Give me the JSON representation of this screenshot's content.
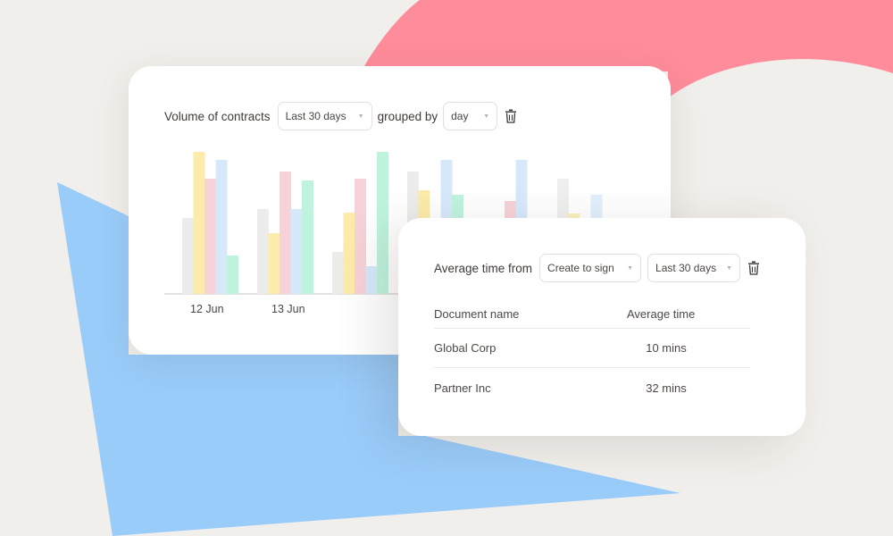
{
  "volume_card": {
    "label_prefix": "Volume of contracts",
    "range_select": "Last 30 days",
    "label_group": "grouped by",
    "group_select": "day",
    "delete_icon": "trash-icon"
  },
  "average_card": {
    "label": "Average time from",
    "from_select": "Create to sign",
    "range_select": "Last 30 days",
    "delete_icon": "trash-icon",
    "columns": [
      "Document name",
      "Average time"
    ],
    "rows": [
      {
        "name": "Global Corp",
        "time": "10 mins"
      },
      {
        "name": "Partner Inc",
        "time": "32 mins"
      }
    ]
  },
  "chart_data": {
    "type": "bar",
    "categories": [
      "12 Jun",
      "13 Jun",
      "",
      "",
      "",
      ""
    ],
    "series_colors": [
      "#ececea",
      "#fcebaa",
      "#f7d2d8",
      "#d6e9fb",
      "#bff3de"
    ],
    "series": [
      {
        "values": [
          85,
          95,
          47,
          137,
          null,
          129
        ]
      },
      {
        "values": [
          159,
          68,
          91,
          116,
          null,
          90
        ]
      },
      {
        "values": [
          129,
          137,
          129,
          null,
          104,
          null
        ]
      },
      {
        "values": [
          150,
          95,
          31,
          150,
          150,
          111
        ]
      },
      {
        "values": [
          43,
          127,
          159,
          111,
          null,
          null
        ]
      }
    ],
    "ylim": [
      0,
      160
    ]
  },
  "colors": {
    "background": "#f1efeb",
    "pink_shape": "#ff8c9b",
    "blue_shape": "#9accfa"
  }
}
